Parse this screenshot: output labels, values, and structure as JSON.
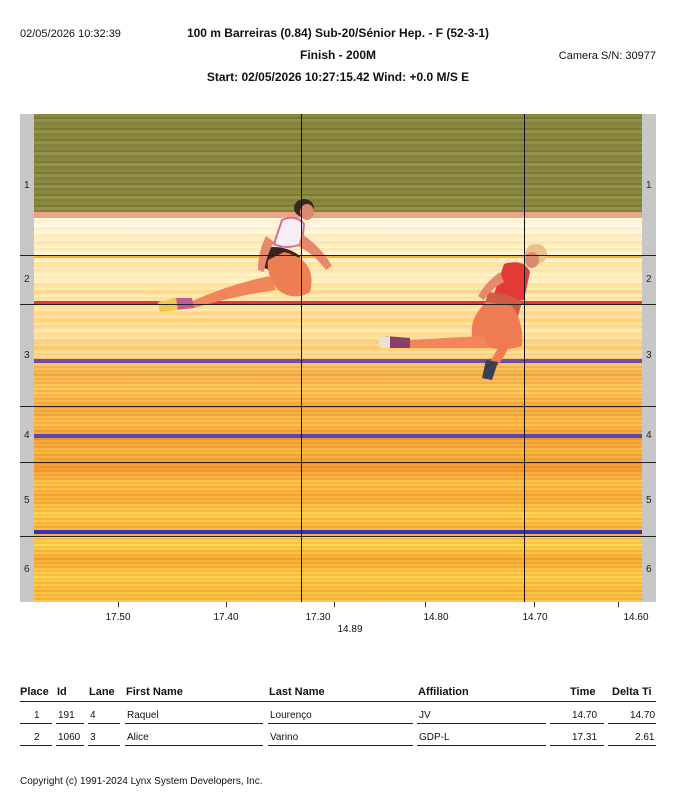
{
  "header": {
    "timestamp": "02/05/2026 10:32:39",
    "title": "100 m Barreiras (0.84)  Sub-20/Sénior Hep. - F (52-3-1)",
    "subtitle": "Finish - 200M",
    "start_wind": "Start: 02/05/2026 10:27:15.42    Wind: +0.0 M/S E",
    "camera": "Camera S/N: 30977"
  },
  "photo": {
    "lanes": [
      "1",
      "2",
      "3",
      "4",
      "5",
      "6"
    ],
    "axis_labels": [
      "17.50",
      "17.40",
      "17.30",
      "14.80",
      "14.70",
      "14.60"
    ],
    "cursor_time": "14.89",
    "athlete_1_desc": "athlete in white top",
    "athlete_2_desc": "athlete in red top"
  },
  "results": {
    "headers": [
      "Place",
      "Id",
      "Lane",
      "First Name",
      "Last Name",
      "Affiliation",
      "Time",
      "Delta Ti"
    ],
    "rows": [
      {
        "place": "1",
        "id": "191",
        "lane": "4",
        "first": "Raquel",
        "last": "Lourenço",
        "affiliation": "JV",
        "time": "14.70",
        "delta": "14.70"
      },
      {
        "place": "2",
        "id": "1060",
        "lane": "3",
        "first": "Alice",
        "last": "Varino",
        "affiliation": "GDP-L",
        "time": "17.31",
        "delta": "2.61"
      }
    ]
  },
  "footer": {
    "copyright": "Copyright (c) 1991-2024 Lynx System Developers, Inc."
  }
}
